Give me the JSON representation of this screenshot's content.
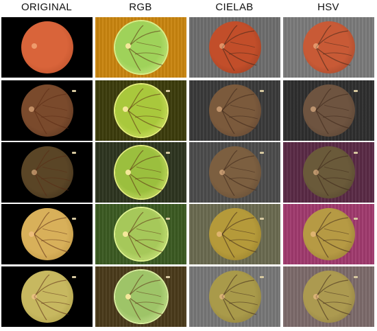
{
  "headers": [
    "ORIGINAL",
    "RGB",
    "CIELAB",
    "HSV"
  ],
  "colors": {
    "original": [
      {
        "disc": "#d9643a",
        "rim": "#b24a26",
        "bg": "#000000"
      },
      {
        "disc": "#7a4a2c",
        "rim": "#52301c",
        "bg": "#000000"
      },
      {
        "disc": "#5a4526",
        "rim": "#3a2b18",
        "bg": "#000000"
      },
      {
        "disc": "#d8b05a",
        "rim": "#b38b3a",
        "bg": "#000000"
      },
      {
        "disc": "#c7b860",
        "rim": "#a4953f",
        "bg": "#000000"
      }
    ],
    "rgb": [
      {
        "disc": "#9fd25a",
        "rim": "#d6f08c",
        "bg": "#c9850f"
      },
      {
        "disc": "#a9c83c",
        "rim": "#e5f07a",
        "bg": "#3c3c0c"
      },
      {
        "disc": "#9bbf3e",
        "rim": "#e2ef7c",
        "bg": "#2d3520"
      },
      {
        "disc": "#a6c85a",
        "rim": "#dff38f",
        "bg": "#3b5a22"
      },
      {
        "disc": "#9ec468",
        "rim": "#d9f0a0",
        "bg": "#4a3a1a"
      }
    ],
    "cielab": [
      {
        "disc": "#c24e2a",
        "rim": "#8f3a20",
        "bg": "#6e6e6e"
      },
      {
        "disc": "#7b5a3c",
        "rim": "#5a4030",
        "bg": "#3a3a3a"
      },
      {
        "disc": "#7c5f40",
        "rim": "#5b4632",
        "bg": "#4c4c4c"
      },
      {
        "disc": "#b59a3a",
        "rim": "#8d7628",
        "bg": "#6a6a50"
      },
      {
        "disc": "#a99a4a",
        "rim": "#857536",
        "bg": "#777777"
      }
    ],
    "hsv": [
      {
        "disc": "#c85a36",
        "rim": "#954128",
        "bg": "#7a7a7a"
      },
      {
        "disc": "#6e5440",
        "rim": "#523e2f",
        "bg": "#2e2e2e"
      },
      {
        "disc": "#6a5a3a",
        "rim": "#4f422b",
        "bg": "#5a2a46"
      },
      {
        "disc": "#b69a44",
        "rim": "#8c7330",
        "bg": "#a03a6e"
      },
      {
        "disc": "#ac9a50",
        "rim": "#86753c",
        "bg": "#7c6a6a"
      }
    ]
  }
}
